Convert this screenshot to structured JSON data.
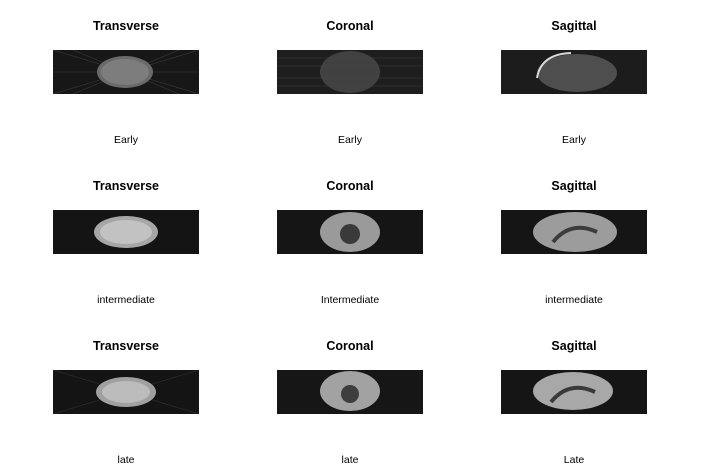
{
  "panels": [
    {
      "view": "Transverse",
      "stage": "Early"
    },
    {
      "view": "Coronal",
      "stage": "Early"
    },
    {
      "view": "Sagittal",
      "stage": "Early"
    },
    {
      "view": "Transverse",
      "stage": "intermediate"
    },
    {
      "view": "Coronal",
      "stage": "Intermediate"
    },
    {
      "view": "Sagittal",
      "stage": "intermediate"
    },
    {
      "view": "Transverse",
      "stage": "late"
    },
    {
      "view": "Coronal",
      "stage": "late"
    },
    {
      "view": "Sagittal",
      "stage": "Late"
    }
  ]
}
